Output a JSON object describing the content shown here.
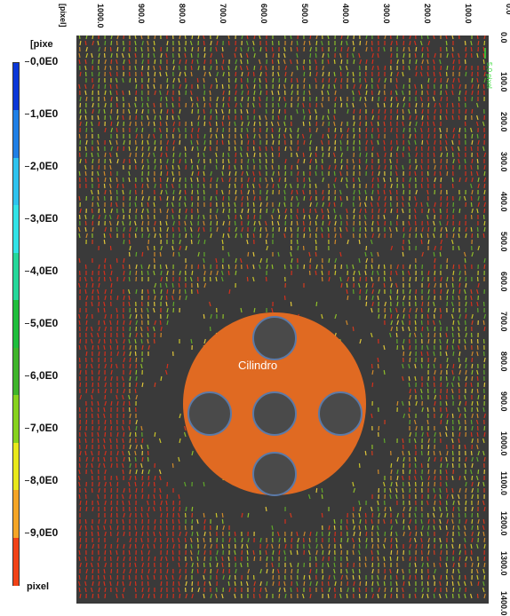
{
  "colorbar": {
    "title": "[pixe",
    "bottom_label": "pixel",
    "ticks": [
      "0,0E0",
      "1,0E0",
      "2,0E0",
      "3,0E0",
      "4,0E0",
      "5,0E0",
      "6,0E0",
      "7,0E0",
      "8,0E0",
      "9,0E0"
    ],
    "colors": [
      "#0a37d8",
      "#1e7fe6",
      "#2ec3ee",
      "#31e3e7",
      "#25d89a",
      "#1fbe3c",
      "#3fb52a",
      "#87d21d",
      "#e8e81a",
      "#f5a526",
      "#f14217"
    ]
  },
  "top_axis": {
    "label": "[pixel]",
    "ticks": [
      "1000.0",
      "900.0",
      "800.0",
      "700.0",
      "600.0",
      "500.0",
      "400.0",
      "300.0",
      "200.0",
      "100.0",
      "0.0"
    ]
  },
  "right_axis": {
    "ticks": [
      "0.0",
      "100.0",
      "200.0",
      "300.0",
      "400.0",
      "500.0",
      "600.0",
      "700.0",
      "800.0",
      "900.0",
      "1000.0",
      "1100.0",
      "1200.0",
      "1300.0",
      "1400.0"
    ],
    "reference_vector_label": "5,0 pixel"
  },
  "overlay": {
    "label": "Cilindro",
    "circle_color": "#e06a22",
    "hole_color": "#4a4a4a"
  }
}
